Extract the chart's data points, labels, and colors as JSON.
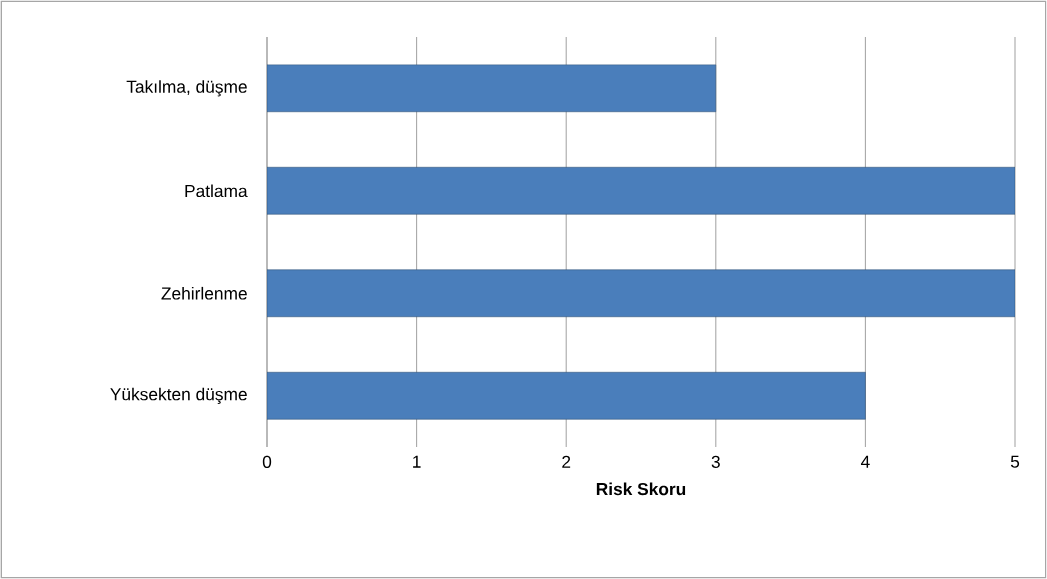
{
  "chart_data": {
    "type": "bar",
    "orientation": "horizontal",
    "xlabel": "**Risk Skoru**",
    "categories": [
      "Takılma, düşme",
      "Patlama",
      "Zehirlenme",
      "Yüksekten düşme"
    ],
    "values": [
      3,
      5,
      5,
      4
    ],
    "color": "#4a7ebb",
    "xlim": [
      0,
      5
    ],
    "xticks": [
      0,
      1,
      2,
      3,
      4,
      5
    ],
    "grid": "x"
  }
}
